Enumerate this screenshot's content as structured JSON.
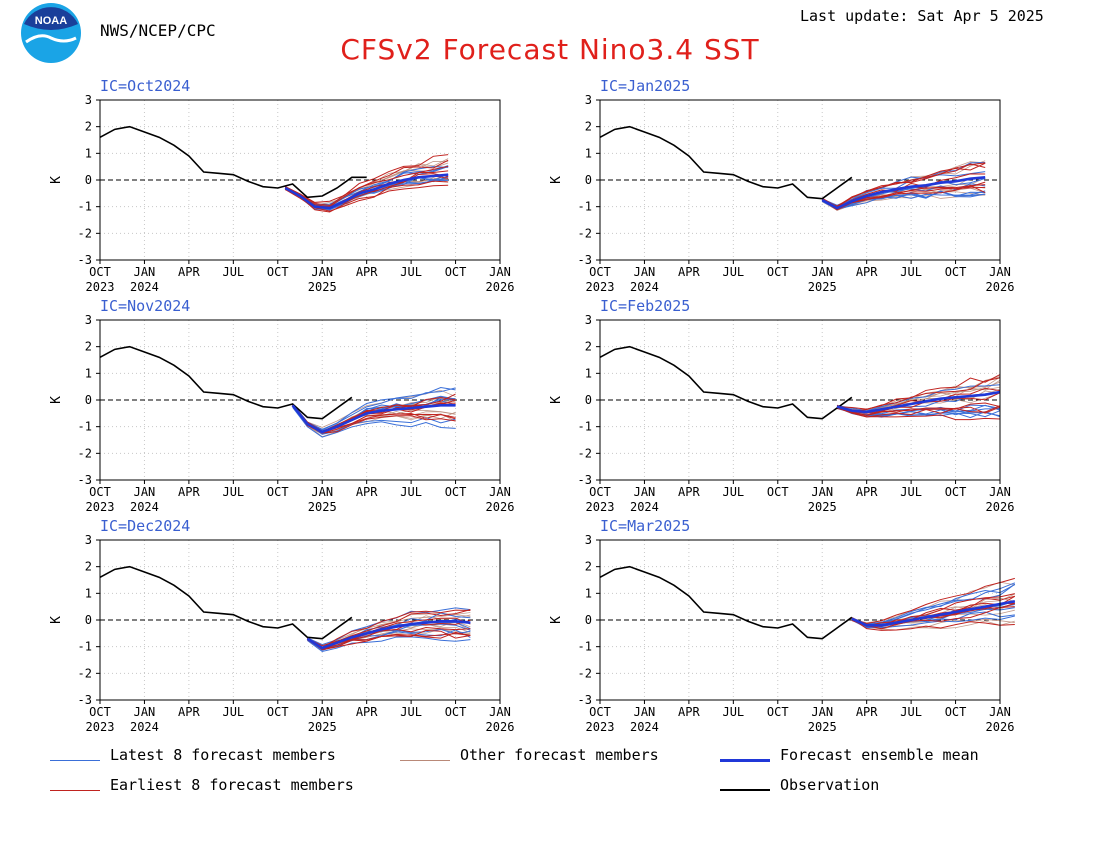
{
  "header": {
    "agency": "NWS/NCEP/CPC",
    "last_update": "Last update: Sat Apr 5 2025",
    "title": "CFSv2 Forecast Nino3.4 SST",
    "logo_text": "NOAA"
  },
  "colors": {
    "title": "#e0201b",
    "ic_label": "#3a5fd0",
    "latest": "#3a6fd8",
    "earliest": "#c0231f",
    "other": "#b98978",
    "mean": "#2038d8",
    "observation": "#000000"
  },
  "legend": {
    "latest": "Latest 8 forecast members",
    "other": "Other forecast members",
    "mean": "Forecast ensemble mean",
    "earliest": "Earliest 8 forecast members",
    "observation": "Observation"
  },
  "axes": {
    "ylabel": "K",
    "ylim": [
      -3,
      3
    ],
    "yticks": [
      "3",
      "2",
      "1",
      "0",
      "-1",
      "-2",
      "-3"
    ],
    "xticks": [
      {
        "m": "OCT",
        "y": "2023"
      },
      {
        "m": "JAN",
        "y": "2024"
      },
      {
        "m": "APR",
        "y": ""
      },
      {
        "m": "JUL",
        "y": ""
      },
      {
        "m": "OCT",
        "y": ""
      },
      {
        "m": "JAN",
        "y": "2025"
      },
      {
        "m": "APR",
        "y": ""
      },
      {
        "m": "JUL",
        "y": ""
      },
      {
        "m": "OCT",
        "y": ""
      },
      {
        "m": "JAN",
        "y": "2026"
      }
    ]
  },
  "chart_data": [
    {
      "type": "line",
      "ic": "IC=Oct2024",
      "observation": [
        1.6,
        1.9,
        2.0,
        1.8,
        1.6,
        1.3,
        0.9,
        0.3,
        0.25,
        0.2,
        -0.05,
        -0.25,
        -0.3,
        -0.15,
        -0.65,
        -0.6,
        -0.3,
        0.1,
        0.1
      ],
      "mean": {
        "start": 12.5,
        "values": [
          -0.3,
          -0.6,
          -1.0,
          -1.05,
          -0.8,
          -0.5,
          -0.35,
          -0.15,
          0.0,
          0.1,
          0.15,
          0.2
        ]
      },
      "spread": 0.6
    },
    {
      "type": "line",
      "ic": "IC=Jan2025",
      "observation": [
        1.6,
        1.9,
        2.0,
        1.8,
        1.6,
        1.3,
        0.9,
        0.3,
        0.25,
        0.2,
        -0.05,
        -0.25,
        -0.3,
        -0.15,
        -0.65,
        -0.7,
        -0.3,
        0.1
      ],
      "mean": {
        "start": 15,
        "values": [
          -0.75,
          -1.05,
          -0.8,
          -0.6,
          -0.45,
          -0.35,
          -0.25,
          -0.2,
          -0.1,
          -0.05,
          0.05,
          0.1
        ]
      },
      "spread": 0.6
    },
    {
      "type": "line",
      "ic": "IC=Nov2024",
      "observation": [
        1.6,
        1.9,
        2.0,
        1.8,
        1.6,
        1.3,
        0.9,
        0.3,
        0.25,
        0.2,
        -0.05,
        -0.25,
        -0.3,
        -0.15,
        -0.65,
        -0.7,
        -0.3,
        0.1
      ],
      "mean": {
        "start": 13,
        "values": [
          -0.2,
          -0.9,
          -1.2,
          -1.0,
          -0.75,
          -0.5,
          -0.4,
          -0.35,
          -0.3,
          -0.25,
          -0.2,
          -0.2
        ]
      },
      "spread": 0.7
    },
    {
      "type": "line",
      "ic": "IC=Feb2025",
      "observation": [
        1.6,
        1.9,
        2.0,
        1.8,
        1.6,
        1.3,
        0.9,
        0.3,
        0.25,
        0.2,
        -0.05,
        -0.25,
        -0.3,
        -0.15,
        -0.65,
        -0.7,
        -0.3,
        0.1
      ],
      "mean": {
        "start": 16,
        "values": [
          -0.25,
          -0.4,
          -0.45,
          -0.35,
          -0.25,
          -0.15,
          -0.05,
          0.05,
          0.1,
          0.15,
          0.2,
          0.3
        ]
      },
      "spread": 0.9
    },
    {
      "type": "line",
      "ic": "IC=Dec2024",
      "observation": [
        1.6,
        1.9,
        2.0,
        1.8,
        1.6,
        1.3,
        0.9,
        0.3,
        0.25,
        0.2,
        -0.05,
        -0.25,
        -0.3,
        -0.15,
        -0.65,
        -0.7,
        -0.3,
        0.1
      ],
      "mean": {
        "start": 14,
        "values": [
          -0.7,
          -1.05,
          -0.85,
          -0.65,
          -0.5,
          -0.35,
          -0.25,
          -0.15,
          -0.1,
          -0.05,
          -0.05,
          -0.1
        ]
      },
      "spread": 0.6
    },
    {
      "type": "line",
      "ic": "IC=Mar2025",
      "observation": [
        1.6,
        1.9,
        2.0,
        1.8,
        1.6,
        1.3,
        0.9,
        0.3,
        0.25,
        0.2,
        -0.05,
        -0.25,
        -0.3,
        -0.15,
        -0.65,
        -0.7,
        -0.3,
        0.1
      ],
      "mean": {
        "start": 17,
        "values": [
          0.05,
          -0.2,
          -0.2,
          -0.1,
          0.0,
          0.1,
          0.2,
          0.3,
          0.4,
          0.5,
          0.6,
          0.7
        ]
      },
      "spread": 0.8
    }
  ]
}
